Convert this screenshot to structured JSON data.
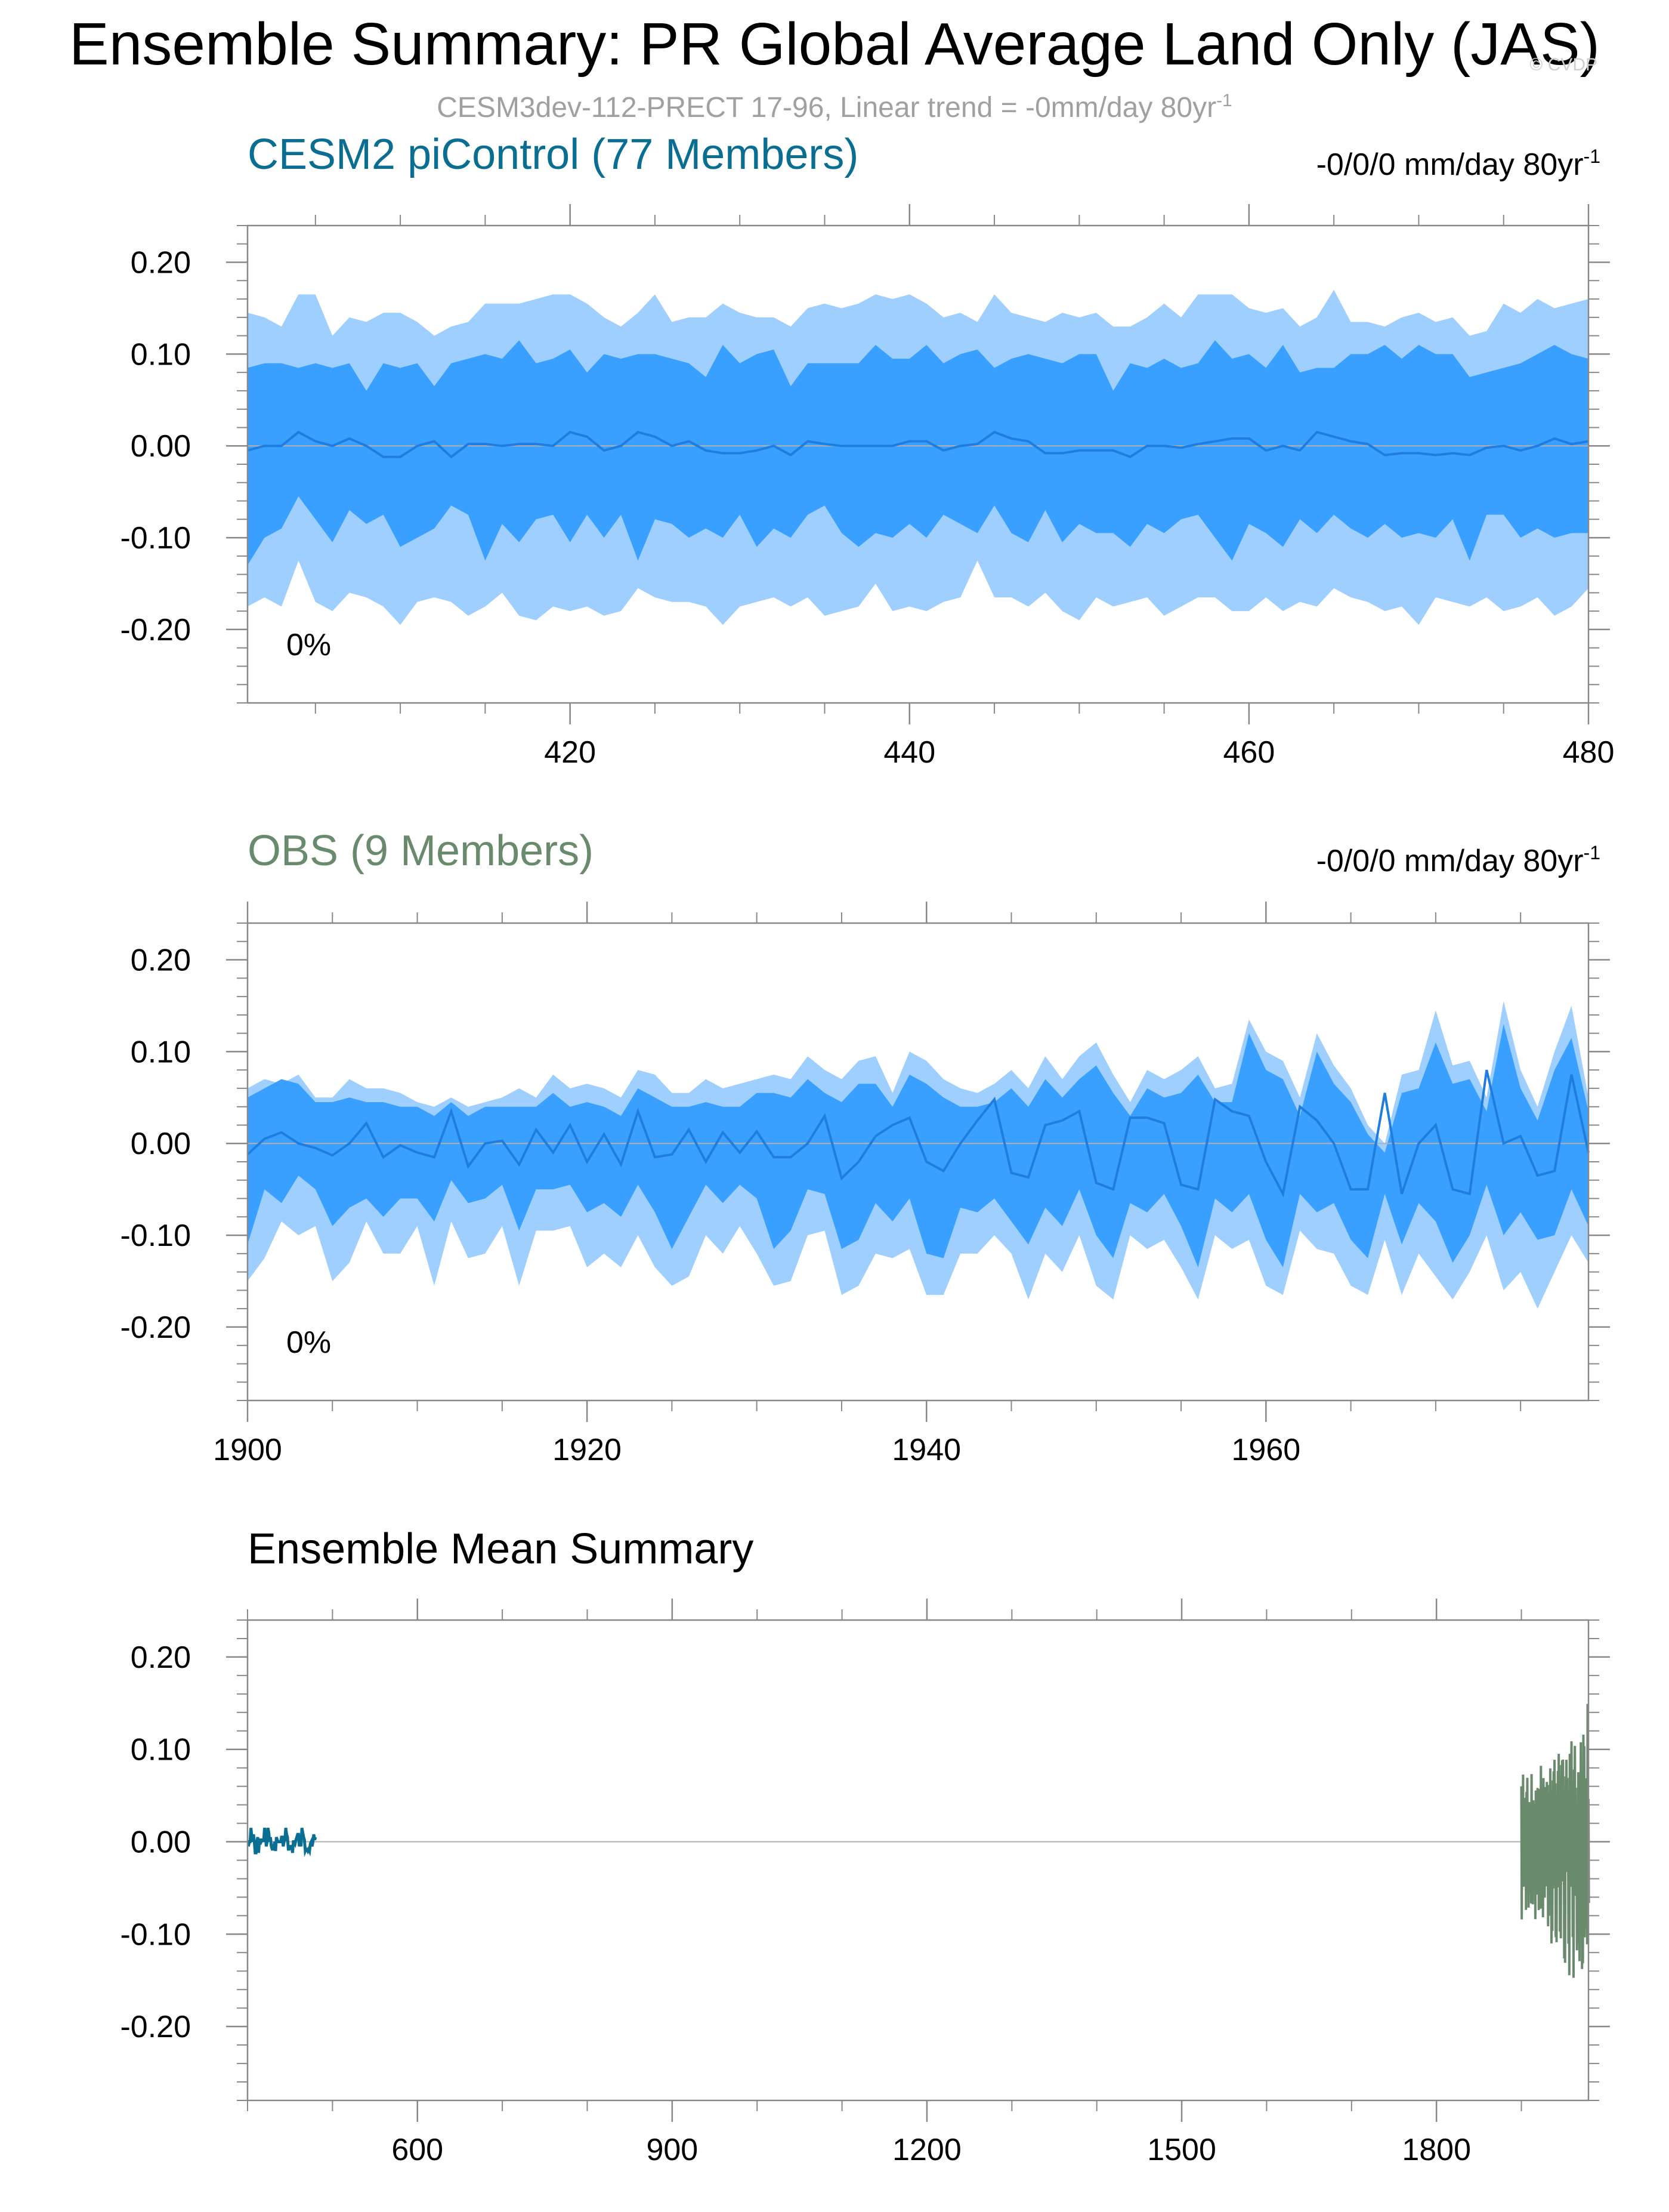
{
  "title": "Ensemble Summary: PR Global Average Land Only (JAS)",
  "watermark": "© CVDP",
  "subtitle": {
    "text": "CESM3dev-112-PRECT 17-96, Linear trend = -0mm/day 80yr",
    "sup": "-1"
  },
  "colors": {
    "outer_band": "#9fcfff",
    "inner_band": "#3aa0ff",
    "mean_line": "#1f7de0",
    "cesm2": "#0a6e92",
    "obs": "#6a8a6e",
    "zero_line": "#b0b0b0",
    "frame": "#888888"
  },
  "chart_data": [
    {
      "type": "area",
      "title": "CESM2 piControl (77 Members)",
      "trend_label": "-0/0/0 mm/day 80yr",
      "trend_sup": "-1",
      "annotation": "0%",
      "xlim": [
        401,
        480
      ],
      "ylim": [
        -0.28,
        0.24
      ],
      "xticks": [
        420,
        440,
        460,
        480
      ],
      "xticklabels": [
        "420",
        "440",
        "460",
        "480"
      ],
      "yticks": [
        0.2,
        0.1,
        0.0,
        -0.1,
        -0.2
      ],
      "yticklabels": [
        "0.20",
        "0.10",
        "0.00",
        "-0.10",
        "-0.20"
      ],
      "x": [
        401,
        402,
        403,
        404,
        405,
        406,
        407,
        408,
        409,
        410,
        411,
        412,
        413,
        414,
        415,
        416,
        417,
        418,
        419,
        420,
        421,
        422,
        423,
        424,
        425,
        426,
        427,
        428,
        429,
        430,
        431,
        432,
        433,
        434,
        435,
        436,
        437,
        438,
        439,
        440,
        441,
        442,
        443,
        444,
        445,
        446,
        447,
        448,
        449,
        450,
        451,
        452,
        453,
        454,
        455,
        456,
        457,
        458,
        459,
        460,
        461,
        462,
        463,
        464,
        465,
        466,
        467,
        468,
        469,
        470,
        471,
        472,
        473,
        474,
        475,
        476,
        477,
        478,
        479,
        480
      ],
      "outer_upper": [
        0.145,
        0.14,
        0.13,
        0.165,
        0.165,
        0.12,
        0.14,
        0.135,
        0.145,
        0.145,
        0.135,
        0.12,
        0.13,
        0.135,
        0.155,
        0.155,
        0.155,
        0.16,
        0.165,
        0.165,
        0.155,
        0.14,
        0.13,
        0.145,
        0.165,
        0.135,
        0.14,
        0.14,
        0.155,
        0.145,
        0.14,
        0.14,
        0.13,
        0.15,
        0.155,
        0.15,
        0.155,
        0.165,
        0.16,
        0.165,
        0.155,
        0.14,
        0.145,
        0.135,
        0.165,
        0.145,
        0.14,
        0.135,
        0.145,
        0.14,
        0.145,
        0.13,
        0.13,
        0.14,
        0.155,
        0.14,
        0.165,
        0.165,
        0.165,
        0.15,
        0.145,
        0.15,
        0.13,
        0.14,
        0.17,
        0.135,
        0.135,
        0.13,
        0.14,
        0.145,
        0.135,
        0.14,
        0.12,
        0.125,
        0.155,
        0.145,
        0.16,
        0.15,
        0.155,
        0.16
      ],
      "inner_upper": [
        0.085,
        0.09,
        0.09,
        0.085,
        0.09,
        0.085,
        0.09,
        0.06,
        0.09,
        0.085,
        0.09,
        0.065,
        0.09,
        0.095,
        0.1,
        0.095,
        0.115,
        0.09,
        0.095,
        0.105,
        0.08,
        0.1,
        0.095,
        0.1,
        0.1,
        0.095,
        0.09,
        0.075,
        0.11,
        0.09,
        0.1,
        0.105,
        0.065,
        0.09,
        0.09,
        0.09,
        0.09,
        0.11,
        0.095,
        0.095,
        0.11,
        0.09,
        0.1,
        0.105,
        0.085,
        0.095,
        0.1,
        0.095,
        0.09,
        0.1,
        0.1,
        0.06,
        0.09,
        0.085,
        0.095,
        0.085,
        0.09,
        0.115,
        0.095,
        0.1,
        0.085,
        0.11,
        0.08,
        0.085,
        0.085,
        0.1,
        0.1,
        0.11,
        0.095,
        0.11,
        0.1,
        0.1,
        0.075,
        0.08,
        0.085,
        0.09,
        0.1,
        0.11,
        0.1,
        0.095
      ],
      "mean": [
        -0.005,
        0.0,
        0.0,
        0.015,
        0.005,
        0.0,
        0.008,
        0.0,
        -0.012,
        -0.012,
        0.0,
        0.005,
        -0.012,
        0.002,
        0.002,
        0.0,
        0.002,
        0.002,
        0.0,
        0.015,
        0.01,
        -0.005,
        0.0,
        0.015,
        0.01,
        0.0,
        0.005,
        -0.005,
        -0.008,
        -0.008,
        -0.005,
        0.0,
        -0.01,
        0.005,
        0.002,
        0.0,
        0.0,
        0.0,
        0.0,
        0.005,
        0.005,
        -0.005,
        0.0,
        0.002,
        0.015,
        0.008,
        0.005,
        -0.008,
        -0.008,
        -0.005,
        -0.005,
        -0.005,
        -0.012,
        0.0,
        0.0,
        -0.002,
        0.002,
        0.005,
        0.008,
        0.008,
        -0.005,
        0.0,
        -0.005,
        0.015,
        0.01,
        0.005,
        0.002,
        -0.01,
        -0.008,
        -0.008,
        -0.01,
        -0.008,
        -0.01,
        -0.002,
        0.0,
        -0.005,
        0.0,
        0.008,
        0.002,
        0.005
      ],
      "inner_lower": [
        -0.13,
        -0.1,
        -0.09,
        -0.055,
        -0.08,
        -0.105,
        -0.07,
        -0.085,
        -0.075,
        -0.11,
        -0.1,
        -0.09,
        -0.065,
        -0.075,
        -0.125,
        -0.085,
        -0.105,
        -0.08,
        -0.075,
        -0.105,
        -0.075,
        -0.1,
        -0.075,
        -0.125,
        -0.08,
        -0.085,
        -0.1,
        -0.09,
        -0.1,
        -0.075,
        -0.11,
        -0.09,
        -0.1,
        -0.075,
        -0.065,
        -0.095,
        -0.11,
        -0.095,
        -0.1,
        -0.085,
        -0.1,
        -0.075,
        -0.085,
        -0.095,
        -0.065,
        -0.095,
        -0.105,
        -0.07,
        -0.105,
        -0.085,
        -0.095,
        -0.095,
        -0.11,
        -0.085,
        -0.095,
        -0.08,
        -0.075,
        -0.1,
        -0.125,
        -0.085,
        -0.095,
        -0.11,
        -0.08,
        -0.095,
        -0.075,
        -0.09,
        -0.1,
        -0.085,
        -0.1,
        -0.095,
        -0.1,
        -0.08,
        -0.125,
        -0.075,
        -0.075,
        -0.1,
        -0.09,
        -0.1,
        -0.095,
        -0.095
      ],
      "outer_lower": [
        -0.175,
        -0.165,
        -0.175,
        -0.125,
        -0.17,
        -0.18,
        -0.16,
        -0.165,
        -0.175,
        -0.195,
        -0.17,
        -0.165,
        -0.17,
        -0.185,
        -0.175,
        -0.16,
        -0.185,
        -0.19,
        -0.175,
        -0.18,
        -0.175,
        -0.185,
        -0.18,
        -0.155,
        -0.165,
        -0.17,
        -0.17,
        -0.175,
        -0.195,
        -0.175,
        -0.17,
        -0.165,
        -0.175,
        -0.165,
        -0.185,
        -0.18,
        -0.175,
        -0.15,
        -0.18,
        -0.175,
        -0.18,
        -0.17,
        -0.165,
        -0.125,
        -0.165,
        -0.165,
        -0.175,
        -0.16,
        -0.18,
        -0.19,
        -0.165,
        -0.175,
        -0.17,
        -0.165,
        -0.185,
        -0.175,
        -0.165,
        -0.165,
        -0.18,
        -0.18,
        -0.165,
        -0.18,
        -0.17,
        -0.175,
        -0.155,
        -0.165,
        -0.17,
        -0.18,
        -0.175,
        -0.195,
        -0.165,
        -0.17,
        -0.175,
        -0.165,
        -0.18,
        -0.175,
        -0.165,
        -0.185,
        -0.175,
        -0.155
      ]
    },
    {
      "type": "area",
      "title": "OBS (9 Members)",
      "trend_label": "-0/0/0 mm/day 80yr",
      "trend_sup": "-1",
      "annotation": "0%",
      "xlim": [
        1900,
        1979
      ],
      "ylim": [
        -0.28,
        0.24
      ],
      "xticks": [
        1900,
        1920,
        1940,
        1960
      ],
      "xticklabels": [
        "1900",
        "1920",
        "1940",
        "1960"
      ],
      "yticks": [
        0.2,
        0.1,
        0.0,
        -0.1,
        -0.2
      ],
      "yticklabels": [
        "0.20",
        "0.10",
        "0.00",
        "-0.10",
        "-0.20"
      ],
      "x": [
        1900,
        1901,
        1902,
        1903,
        1904,
        1905,
        1906,
        1907,
        1908,
        1909,
        1910,
        1911,
        1912,
        1913,
        1914,
        1915,
        1916,
        1917,
        1918,
        1919,
        1920,
        1921,
        1922,
        1923,
        1924,
        1925,
        1926,
        1927,
        1928,
        1929,
        1930,
        1931,
        1932,
        1933,
        1934,
        1935,
        1936,
        1937,
        1938,
        1939,
        1940,
        1941,
        1942,
        1943,
        1944,
        1945,
        1946,
        1947,
        1948,
        1949,
        1950,
        1951,
        1952,
        1953,
        1954,
        1955,
        1956,
        1957,
        1958,
        1959,
        1960,
        1961,
        1962,
        1963,
        1964,
        1965,
        1966,
        1967,
        1968,
        1969,
        1970,
        1971,
        1972,
        1973,
        1974,
        1975,
        1976,
        1977,
        1978,
        1979
      ],
      "outer_upper": [
        0.06,
        0.07,
        0.065,
        0.075,
        0.05,
        0.05,
        0.07,
        0.06,
        0.06,
        0.055,
        0.045,
        0.04,
        0.05,
        0.04,
        0.045,
        0.05,
        0.06,
        0.05,
        0.075,
        0.06,
        0.065,
        0.06,
        0.05,
        0.08,
        0.075,
        0.055,
        0.055,
        0.07,
        0.06,
        0.065,
        0.07,
        0.075,
        0.07,
        0.095,
        0.08,
        0.07,
        0.09,
        0.095,
        0.055,
        0.1,
        0.09,
        0.07,
        0.06,
        0.055,
        0.065,
        0.08,
        0.06,
        0.095,
        0.07,
        0.095,
        0.11,
        0.075,
        0.045,
        0.08,
        0.07,
        0.08,
        0.095,
        0.06,
        0.065,
        0.135,
        0.1,
        0.09,
        0.05,
        0.12,
        0.085,
        0.06,
        0.02,
        0.0,
        0.075,
        0.08,
        0.145,
        0.085,
        0.09,
        0.05,
        0.155,
        0.08,
        0.04,
        0.1,
        0.15,
        0.05
      ],
      "inner_upper": [
        0.05,
        0.06,
        0.07,
        0.065,
        0.045,
        0.045,
        0.05,
        0.045,
        0.045,
        0.04,
        0.04,
        0.03,
        0.045,
        0.03,
        0.04,
        0.04,
        0.04,
        0.04,
        0.055,
        0.04,
        0.045,
        0.04,
        0.03,
        0.06,
        0.05,
        0.04,
        0.04,
        0.045,
        0.04,
        0.04,
        0.055,
        0.055,
        0.05,
        0.07,
        0.055,
        0.045,
        0.065,
        0.065,
        0.04,
        0.075,
        0.065,
        0.05,
        0.04,
        0.04,
        0.045,
        0.06,
        0.04,
        0.07,
        0.05,
        0.07,
        0.085,
        0.055,
        0.03,
        0.06,
        0.05,
        0.055,
        0.075,
        0.045,
        0.045,
        0.12,
        0.08,
        0.07,
        0.03,
        0.1,
        0.065,
        0.045,
        0.01,
        -0.01,
        0.055,
        0.06,
        0.11,
        0.065,
        0.07,
        0.035,
        0.13,
        0.06,
        0.025,
        0.08,
        0.115,
        0.035
      ],
      "mean": [
        -0.012,
        0.005,
        0.012,
        0.0,
        -0.005,
        -0.013,
        0.0,
        0.022,
        -0.015,
        -0.002,
        -0.01,
        -0.015,
        0.035,
        -0.025,
        0.0,
        0.003,
        -0.023,
        0.015,
        -0.01,
        0.02,
        -0.02,
        0.01,
        -0.023,
        0.035,
        -0.015,
        -0.012,
        0.015,
        -0.02,
        0.012,
        -0.01,
        0.013,
        -0.015,
        -0.015,
        0.0,
        0.03,
        -0.038,
        -0.02,
        0.008,
        0.02,
        0.028,
        -0.02,
        -0.03,
        0.0,
        0.025,
        0.048,
        -0.032,
        -0.037,
        0.02,
        0.025,
        0.035,
        -0.043,
        -0.05,
        0.028,
        0.028,
        0.022,
        -0.045,
        -0.05,
        0.048,
        0.035,
        0.03,
        -0.02,
        -0.055,
        0.04,
        0.025,
        0.0,
        -0.05,
        -0.05,
        0.055,
        -0.055,
        0.0,
        0.02,
        -0.05,
        -0.055,
        0.08,
        0.0,
        0.008,
        -0.035,
        -0.03,
        0.075,
        -0.01
      ],
      "inner_lower": [
        -0.11,
        -0.05,
        -0.065,
        -0.035,
        -0.05,
        -0.09,
        -0.07,
        -0.06,
        -0.08,
        -0.06,
        -0.06,
        -0.085,
        -0.04,
        -0.065,
        -0.06,
        -0.045,
        -0.095,
        -0.05,
        -0.05,
        -0.045,
        -0.075,
        -0.065,
        -0.08,
        -0.045,
        -0.075,
        -0.115,
        -0.08,
        -0.045,
        -0.065,
        -0.045,
        -0.06,
        -0.115,
        -0.095,
        -0.05,
        -0.055,
        -0.115,
        -0.105,
        -0.065,
        -0.085,
        -0.06,
        -0.12,
        -0.125,
        -0.07,
        -0.075,
        -0.06,
        -0.085,
        -0.11,
        -0.07,
        -0.09,
        -0.05,
        -0.1,
        -0.125,
        -0.065,
        -0.075,
        -0.055,
        -0.09,
        -0.135,
        -0.06,
        -0.075,
        -0.055,
        -0.105,
        -0.135,
        -0.055,
        -0.075,
        -0.065,
        -0.105,
        -0.125,
        -0.055,
        -0.11,
        -0.065,
        -0.085,
        -0.13,
        -0.1,
        -0.045,
        -0.1,
        -0.075,
        -0.105,
        -0.1,
        -0.05,
        -0.09
      ],
      "outer_lower": [
        -0.15,
        -0.125,
        -0.085,
        -0.1,
        -0.09,
        -0.15,
        -0.13,
        -0.085,
        -0.12,
        -0.12,
        -0.09,
        -0.155,
        -0.085,
        -0.125,
        -0.12,
        -0.09,
        -0.155,
        -0.095,
        -0.095,
        -0.09,
        -0.135,
        -0.12,
        -0.135,
        -0.1,
        -0.135,
        -0.155,
        -0.145,
        -0.1,
        -0.12,
        -0.09,
        -0.12,
        -0.155,
        -0.15,
        -0.1,
        -0.095,
        -0.165,
        -0.155,
        -0.12,
        -0.125,
        -0.115,
        -0.165,
        -0.165,
        -0.12,
        -0.12,
        -0.1,
        -0.12,
        -0.17,
        -0.12,
        -0.14,
        -0.1,
        -0.155,
        -0.17,
        -0.1,
        -0.115,
        -0.105,
        -0.135,
        -0.17,
        -0.1,
        -0.115,
        -0.105,
        -0.155,
        -0.165,
        -0.095,
        -0.115,
        -0.12,
        -0.155,
        -0.165,
        -0.105,
        -0.165,
        -0.12,
        -0.145,
        -0.17,
        -0.14,
        -0.1,
        -0.16,
        -0.14,
        -0.18,
        -0.14,
        -0.1,
        -0.13
      ]
    },
    {
      "type": "line",
      "title": "Ensemble Mean Summary",
      "xlim": [
        400,
        1979
      ],
      "ylim": [
        -0.28,
        0.24
      ],
      "xticks": [
        600,
        900,
        1200,
        1500,
        1800
      ],
      "xticklabels": [
        "600",
        "900",
        "1200",
        "1500",
        "1800"
      ],
      "yticks": [
        0.2,
        0.1,
        0.0,
        -0.1,
        -0.2
      ],
      "yticklabels": [
        "0.20",
        "0.10",
        "0.00",
        "-0.10",
        "-0.20"
      ],
      "series": [
        {
          "ref": "cesm2",
          "x_start": 401
        },
        {
          "ref": "obs",
          "x_start": 1900
        }
      ]
    }
  ]
}
